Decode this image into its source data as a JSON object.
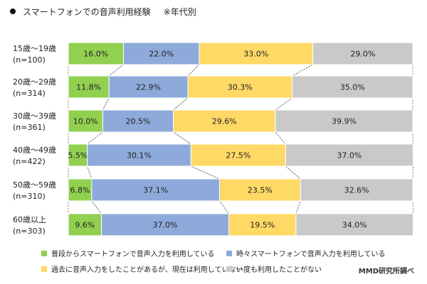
{
  "title": "スマートフォンでの音声利用経験",
  "title_note": "※年代別",
  "source": "MMD研究所調べ",
  "legend": [
    {
      "label": "普段からスマートフォンで音声入力を利用している",
      "color": "#92d050"
    },
    {
      "label": "時々スマートフォンで音声入力を利用している",
      "color": "#8eaadb"
    },
    {
      "label": "過去に音声入力をしたことがあるが、現在は利用していない",
      "color": "#ffd966"
    },
    {
      "label": "一度も利用したことがない",
      "color": "#c9c9c9"
    }
  ],
  "chart_data": {
    "type": "bar",
    "orientation": "horizontal",
    "stacked": true,
    "percent": true,
    "categories": [
      {
        "age": "15歳～19歳",
        "n": "(n=100)"
      },
      {
        "age": "20歳～29歳",
        "n": "(n=314)"
      },
      {
        "age": "30歳～39歳",
        "n": "(n=361)"
      },
      {
        "age": "40歳～49歳",
        "n": "(n=422)"
      },
      {
        "age": "50歳～59歳",
        "n": "(n=310)"
      },
      {
        "age": "60歳以上",
        "n": "(n=303)"
      }
    ],
    "series": [
      {
        "name": "普段からスマートフォンで音声入力を利用している",
        "values": [
          16.0,
          11.8,
          10.0,
          5.5,
          6.8,
          9.6
        ]
      },
      {
        "name": "時々スマートフォンで音声入力を利用している",
        "values": [
          22.0,
          22.9,
          20.5,
          30.1,
          37.1,
          37.0
        ]
      },
      {
        "name": "過去に音声入力をしたことがあるが、現在は利用していない",
        "values": [
          33.0,
          30.3,
          29.6,
          27.5,
          23.5,
          19.5
        ]
      },
      {
        "name": "一度も利用したことがない",
        "values": [
          29.0,
          35.0,
          39.9,
          37.0,
          32.6,
          34.0
        ]
      }
    ],
    "colors": [
      "#92d050",
      "#8eaadb",
      "#ffd966",
      "#c9c9c9"
    ],
    "xlim": [
      0,
      100
    ],
    "grid": false,
    "legend_position": "bottom"
  }
}
